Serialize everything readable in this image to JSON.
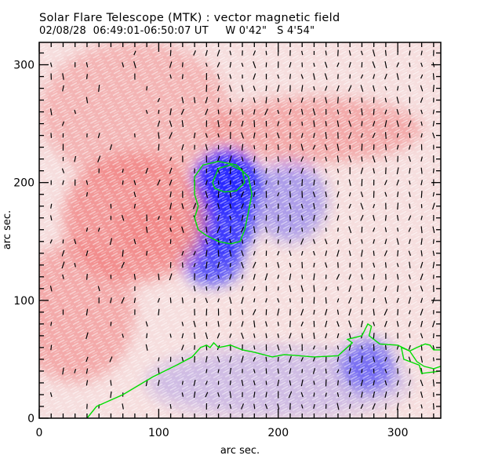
{
  "header": {
    "title": "Solar Flare Telescope (MTK) : vector magnetic field",
    "date": "02/08/28",
    "time_range": "06:49:01-06:50:07 UT",
    "position_w": "W 0'42\"",
    "position_s": "S 4'54\""
  },
  "colors": {
    "positive": "#f08080",
    "negative": "#2a2aff",
    "contour": "#00dd00",
    "vector": "#000000",
    "frame": "#000000"
  },
  "chart_data": {
    "type": "heatmap",
    "title": "Solar Flare Telescope (MTK) : vector magnetic field",
    "xlabel": "arc sec.",
    "ylabel": "arc sec.",
    "xlim": [
      0,
      336
    ],
    "ylim": [
      0,
      319
    ],
    "xticks": [
      0,
      100,
      200,
      300
    ],
    "yticks": [
      0,
      100,
      200,
      300
    ],
    "x_tick_labels": [
      "0",
      "100",
      "200",
      "300"
    ],
    "y_tick_labels": [
      "0",
      "100",
      "200",
      "300"
    ],
    "minor_tick_step": 10,
    "polarity_regions": [
      {
        "name": "negative-umbra",
        "polarity": "negative",
        "cx": 157,
        "cy": 200,
        "rx": 28,
        "ry": 28,
        "strength": 1.0
      },
      {
        "name": "negative-core-south",
        "polarity": "negative",
        "cx": 155,
        "cy": 168,
        "rx": 26,
        "ry": 30,
        "strength": 0.85
      },
      {
        "name": "negative-tail",
        "polarity": "negative",
        "cx": 145,
        "cy": 135,
        "rx": 25,
        "ry": 22,
        "strength": 0.75
      },
      {
        "name": "negative-east",
        "polarity": "negative",
        "cx": 210,
        "cy": 185,
        "rx": 30,
        "ry": 35,
        "strength": 0.35
      },
      {
        "name": "negative-southeast",
        "polarity": "negative",
        "cx": 275,
        "cy": 45,
        "rx": 22,
        "ry": 22,
        "strength": 0.55
      },
      {
        "name": "negative-faint-south",
        "polarity": "negative",
        "cx": 200,
        "cy": 30,
        "rx": 110,
        "ry": 30,
        "strength": 0.18
      },
      {
        "name": "positive-west",
        "polarity": "positive",
        "cx": 80,
        "cy": 170,
        "rx": 60,
        "ry": 55,
        "strength": 0.75
      },
      {
        "name": "positive-center-left",
        "polarity": "positive",
        "cx": 95,
        "cy": 160,
        "rx": 30,
        "ry": 25,
        "strength": 0.6
      },
      {
        "name": "positive-north",
        "polarity": "positive",
        "cx": 230,
        "cy": 245,
        "rx": 90,
        "ry": 28,
        "strength": 0.55
      },
      {
        "name": "positive-nw",
        "polarity": "positive",
        "cx": 80,
        "cy": 260,
        "rx": 80,
        "ry": 60,
        "strength": 0.45
      },
      {
        "name": "positive-sw",
        "polarity": "positive",
        "cx": 30,
        "cy": 90,
        "rx": 50,
        "ry": 60,
        "strength": 0.55
      }
    ],
    "contours": [
      {
        "name": "neutral-line",
        "points": [
          [
            40,
            0
          ],
          [
            48,
            10
          ],
          [
            70,
            20
          ],
          [
            95,
            35
          ],
          [
            115,
            45
          ],
          [
            128,
            52
          ],
          [
            135,
            60
          ],
          [
            140,
            62
          ],
          [
            143,
            60
          ],
          [
            146,
            64
          ],
          [
            150,
            60
          ],
          [
            160,
            62
          ],
          [
            170,
            58
          ],
          [
            180,
            56
          ],
          [
            195,
            52
          ],
          [
            205,
            54
          ],
          [
            230,
            52
          ],
          [
            250,
            53
          ],
          [
            262,
            64
          ],
          [
            258,
            67
          ],
          [
            270,
            70
          ],
          [
            275,
            80
          ],
          [
            278,
            78
          ],
          [
            276,
            70
          ],
          [
            285,
            63
          ],
          [
            300,
            62
          ],
          [
            310,
            57
          ],
          [
            316,
            60
          ],
          [
            323,
            63
          ],
          [
            327,
            62
          ],
          [
            330,
            58
          ],
          [
            336,
            58
          ]
        ]
      },
      {
        "name": "southeast-loop",
        "points": [
          [
            336,
            40
          ],
          [
            320,
            38
          ],
          [
            318,
            45
          ],
          [
            305,
            50
          ],
          [
            303,
            60
          ],
          [
            310,
            57
          ],
          [
            316,
            48
          ],
          [
            322,
            44
          ],
          [
            330,
            42
          ],
          [
            336,
            44
          ]
        ]
      },
      {
        "name": "umbra-outer",
        "points": [
          [
            150,
            150
          ],
          [
            140,
            155
          ],
          [
            133,
            160
          ],
          [
            130,
            170
          ],
          [
            133,
            180
          ],
          [
            130,
            190
          ],
          [
            130,
            205
          ],
          [
            137,
            215
          ],
          [
            150,
            218
          ],
          [
            165,
            215
          ],
          [
            175,
            205
          ],
          [
            178,
            190
          ],
          [
            175,
            175
          ],
          [
            172,
            160
          ],
          [
            168,
            150
          ],
          [
            160,
            148
          ],
          [
            150,
            150
          ]
        ]
      },
      {
        "name": "umbra-inner",
        "points": [
          [
            145,
            200
          ],
          [
            150,
            212
          ],
          [
            160,
            215
          ],
          [
            170,
            210
          ],
          [
            172,
            200
          ],
          [
            165,
            193
          ],
          [
            155,
            192
          ],
          [
            147,
            195
          ],
          [
            145,
            200
          ]
        ]
      }
    ],
    "vector_field": {
      "grid_step": 10,
      "x_range": [
        10,
        330
      ],
      "y_range": [
        10,
        310
      ],
      "dominant_direction": "north-northwest",
      "typical_length": 7
    }
  }
}
